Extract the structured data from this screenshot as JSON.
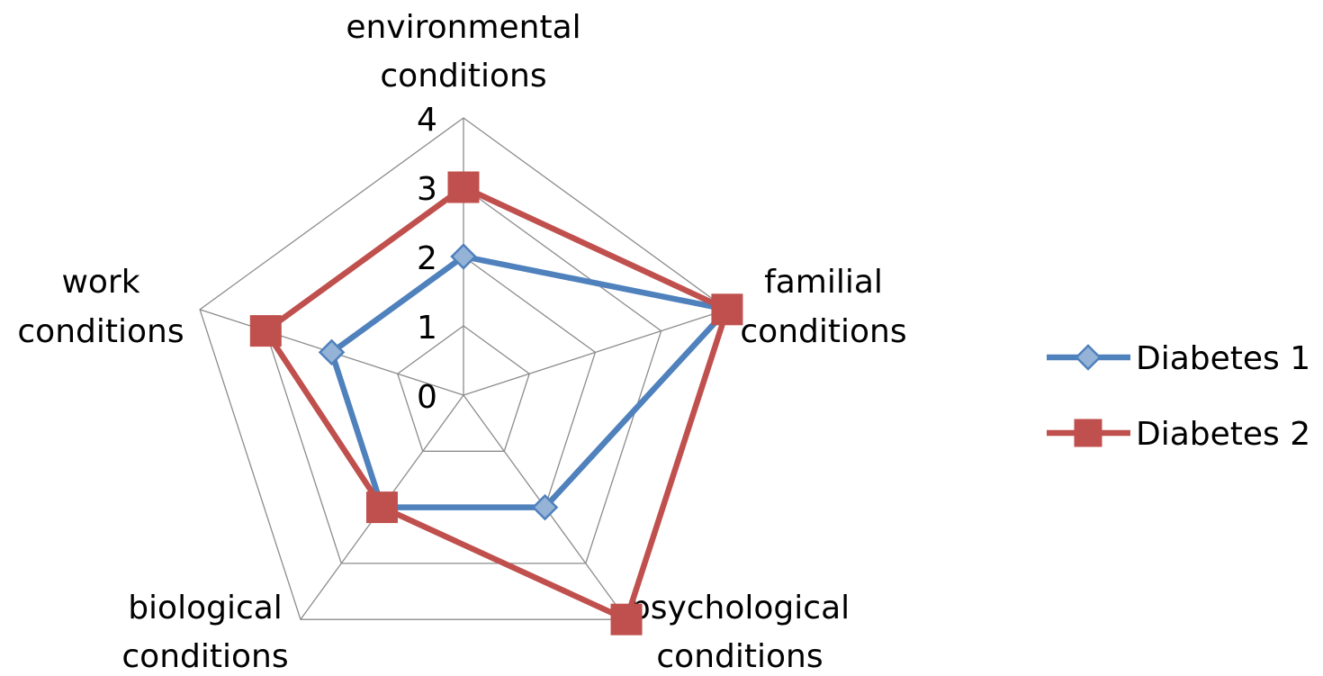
{
  "chart_data": {
    "type": "radar",
    "title": "",
    "categories": [
      [
        "environmental",
        "conditions"
      ],
      [
        "familial",
        "conditions"
      ],
      [
        "psychological",
        "conditions"
      ],
      [
        "biological",
        "conditions"
      ],
      [
        "work",
        "conditions"
      ]
    ],
    "rlim": [
      0,
      4
    ],
    "ticks": [
      "0",
      "1",
      "2",
      "3",
      "4"
    ],
    "grid": true,
    "legend_position": "right",
    "series": [
      {
        "name": "Diabetes 1",
        "values": [
          2,
          4,
          2,
          2,
          2
        ],
        "color": "#4F81BD",
        "marker_fill": "#95B3D7",
        "marker": "diamond"
      },
      {
        "name": "Diabetes 2",
        "values": [
          3,
          4,
          4,
          2,
          3
        ],
        "color": "#C0504D",
        "marker_fill": "#C0504D",
        "marker": "square"
      }
    ]
  }
}
